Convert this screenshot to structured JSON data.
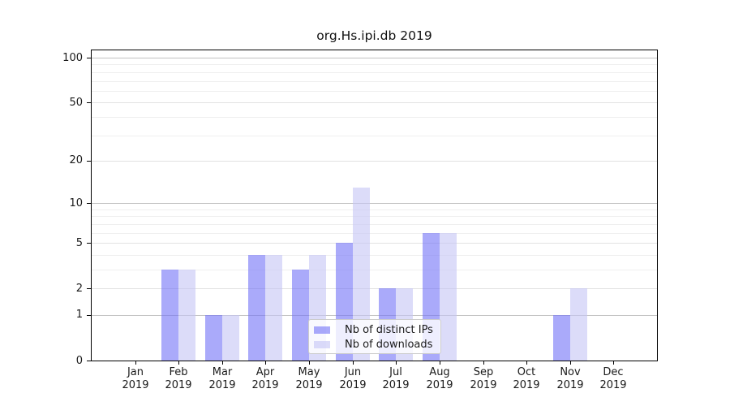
{
  "chart_data": {
    "type": "bar",
    "title": "org.Hs.ipi.db 2019",
    "categories": [
      "Jan 2019",
      "Feb 2019",
      "Mar 2019",
      "Apr 2019",
      "May 2019",
      "Jun 2019",
      "Jul 2019",
      "Aug 2019",
      "Sep 2019",
      "Oct 2019",
      "Nov 2019",
      "Dec 2019"
    ],
    "series": [
      {
        "name": "Nb of distinct IPs",
        "color": "rgba(113,113,247,0.6)",
        "values": [
          0,
          3,
          1,
          4,
          3,
          5,
          2,
          6,
          0,
          0,
          1,
          0
        ]
      },
      {
        "name": "Nb of downloads",
        "color": "rgba(197,197,245,0.6)",
        "values": [
          0,
          3,
          1,
          4,
          4,
          13,
          2,
          6,
          0,
          0,
          2,
          0
        ]
      }
    ],
    "y_axis": {
      "scale": "log10(value+1)",
      "ticks": [
        0,
        1,
        2,
        5,
        10,
        20,
        50,
        100
      ],
      "major_gridlines": [
        1,
        10,
        100
      ],
      "light_gridlines": [
        2,
        5,
        20,
        50
      ],
      "minor_gridlines": [
        3,
        4,
        6,
        7,
        8,
        9,
        30,
        40,
        60,
        70,
        80,
        90
      ],
      "max": 112
    },
    "legend": {
      "entries": [
        "Nb of distinct IPs",
        "Nb of downloads"
      ],
      "position": "lower-center"
    },
    "grid": true,
    "colors": {
      "bar_distinct_ips": "rgba(113,113,247,0.6)",
      "bar_downloads": "rgba(197,197,245,0.6)",
      "grid_major": "#c2c2c2",
      "grid_minor": "#efefef",
      "axis": "#000000",
      "text": "#1a1a1a"
    }
  }
}
